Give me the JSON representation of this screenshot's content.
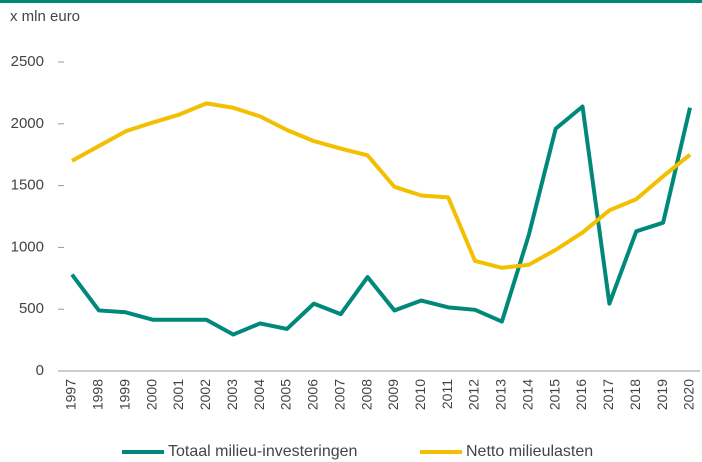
{
  "chart_data": {
    "type": "line",
    "y_label": "x mln euro",
    "categories": [
      "1997",
      "1998",
      "1999",
      "2000",
      "2001",
      "2002",
      "2003",
      "2004",
      "2005",
      "2006",
      "2007",
      "2008",
      "2009",
      "2010",
      "2011",
      "2012",
      "2013",
      "2014",
      "2015",
      "2016",
      "2017",
      "2018",
      "2019",
      "2020"
    ],
    "series": [
      {
        "name": "Totaal milieu-investeringen",
        "color": "#00897b",
        "values": [
          780,
          490,
          475,
          415,
          415,
          415,
          295,
          385,
          340,
          545,
          460,
          760,
          490,
          570,
          515,
          495,
          400,
          1100,
          1960,
          2140,
          545,
          1130,
          1200,
          2130
        ]
      },
      {
        "name": "Netto milieulasten",
        "color": "#f2c000",
        "values": [
          1700,
          1820,
          1940,
          2010,
          2075,
          2165,
          2130,
          2060,
          1950,
          1860,
          1800,
          1745,
          1490,
          1420,
          1405,
          890,
          835,
          860,
          980,
          1120,
          1300,
          1390,
          1575,
          1750
        ]
      }
    ],
    "ylim": [
      0,
      2500
    ],
    "yticks": [
      0,
      500,
      1000,
      1500,
      2000,
      2500
    ],
    "grid": false,
    "legend": "bottom"
  }
}
